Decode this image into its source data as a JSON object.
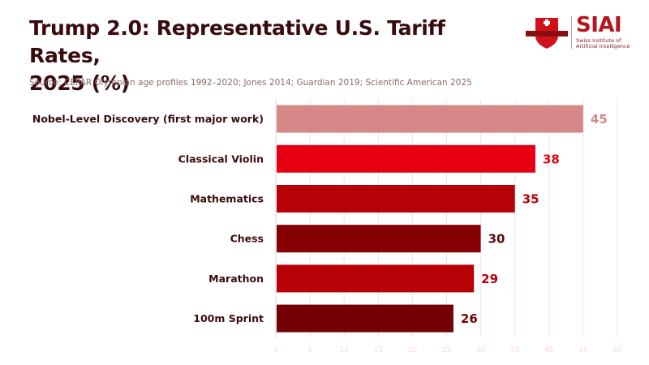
{
  "header": {
    "title_line1": "Trump 2.0: Representative U.S. Tariff Rates,",
    "title_line2": "2025 (%)",
    "source": "Source: CEPAR Olympian age profiles 1992–2020; Jones 2014; Guardian 2019; Scientific American 2025"
  },
  "logo": {
    "name": "SIAI",
    "subtitle_line1": "Swiss Institute of",
    "subtitle_line2": "Artificial Intelligence",
    "icon": "shield-cross-icon",
    "brand_color": "#b5151c"
  },
  "chart_data": {
    "type": "bar",
    "orientation": "horizontal",
    "title": "Trump 2.0: Representative U.S. Tariff Rates, 2025 (%)",
    "subtitle": "Source: CEPAR Olympian age profiles 1992–2020; Jones 2014; Guardian 2019; Scientific American 2025",
    "xlabel": "",
    "ylabel": "",
    "categories": [
      "Nobel-Level Discovery (first major work)",
      "Classical Violin",
      "Mathematics",
      "Chess",
      "Marathon",
      "100m Sprint"
    ],
    "values": [
      45,
      38,
      35,
      30,
      29,
      26
    ],
    "bar_colors": [
      "#d68888",
      "#e60012",
      "#b80007",
      "#860003",
      "#b80007",
      "#730005"
    ],
    "label_colors": [
      "#d68888",
      "#e60012",
      "#b80007",
      "#5a0a0a",
      "#b80007",
      "#730005"
    ],
    "xlim": [
      0,
      50
    ],
    "xticks": [
      0,
      5,
      10,
      15,
      20,
      25,
      30,
      35,
      40,
      45,
      50
    ],
    "grid": true,
    "legend": "none"
  }
}
